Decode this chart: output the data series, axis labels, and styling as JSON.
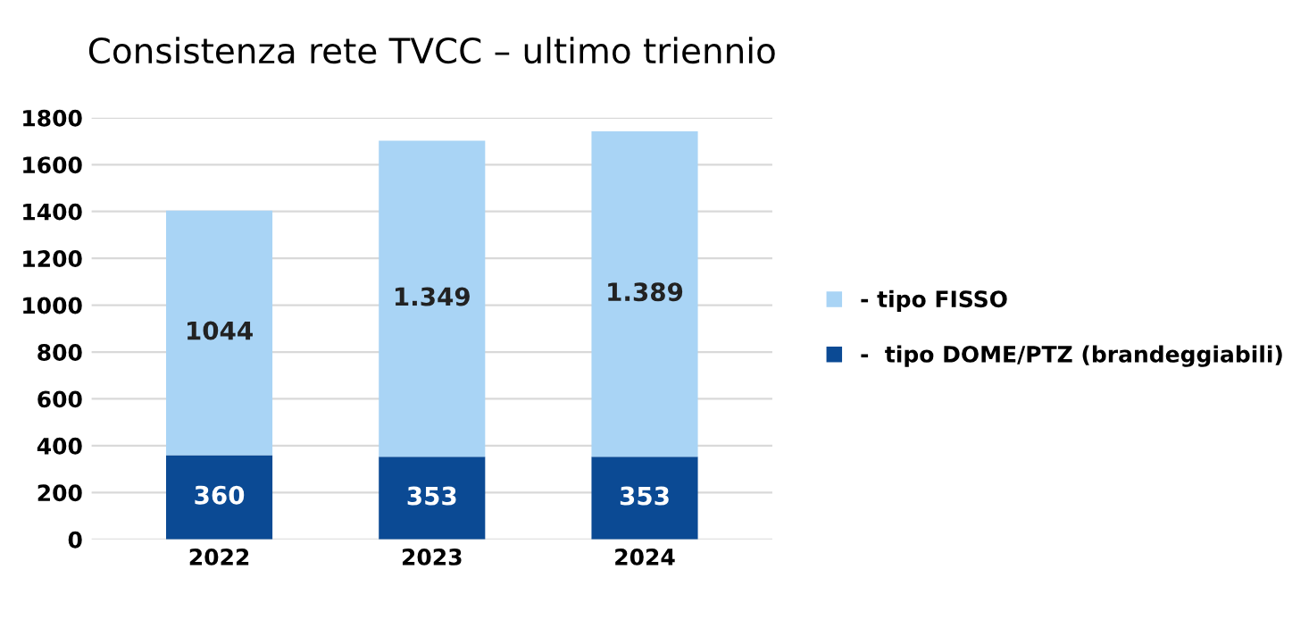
{
  "chart_data": {
    "type": "bar",
    "title": "Consistenza rete TVCC – ultimo triennio",
    "categories": [
      "2022",
      "2023",
      "2024"
    ],
    "stacked": true,
    "series": [
      {
        "name": "-  tipo DOME/PTZ (brandeggiabili)",
        "color": "#0b4a94",
        "values": [
          360,
          353,
          353
        ],
        "value_labels": [
          "360",
          "353",
          "353"
        ]
      },
      {
        "name": "- tipo FISSO",
        "color": "#a9d4f5",
        "values": [
          1044,
          1349,
          1389
        ],
        "value_labels": [
          "1044",
          "1.349",
          "1.389"
        ]
      }
    ],
    "ylim": [
      0,
      1800
    ],
    "yticks": [
      0,
      200,
      400,
      600,
      800,
      1000,
      1200,
      1400,
      1600,
      1800
    ],
    "grid": "y",
    "legend": "right"
  }
}
